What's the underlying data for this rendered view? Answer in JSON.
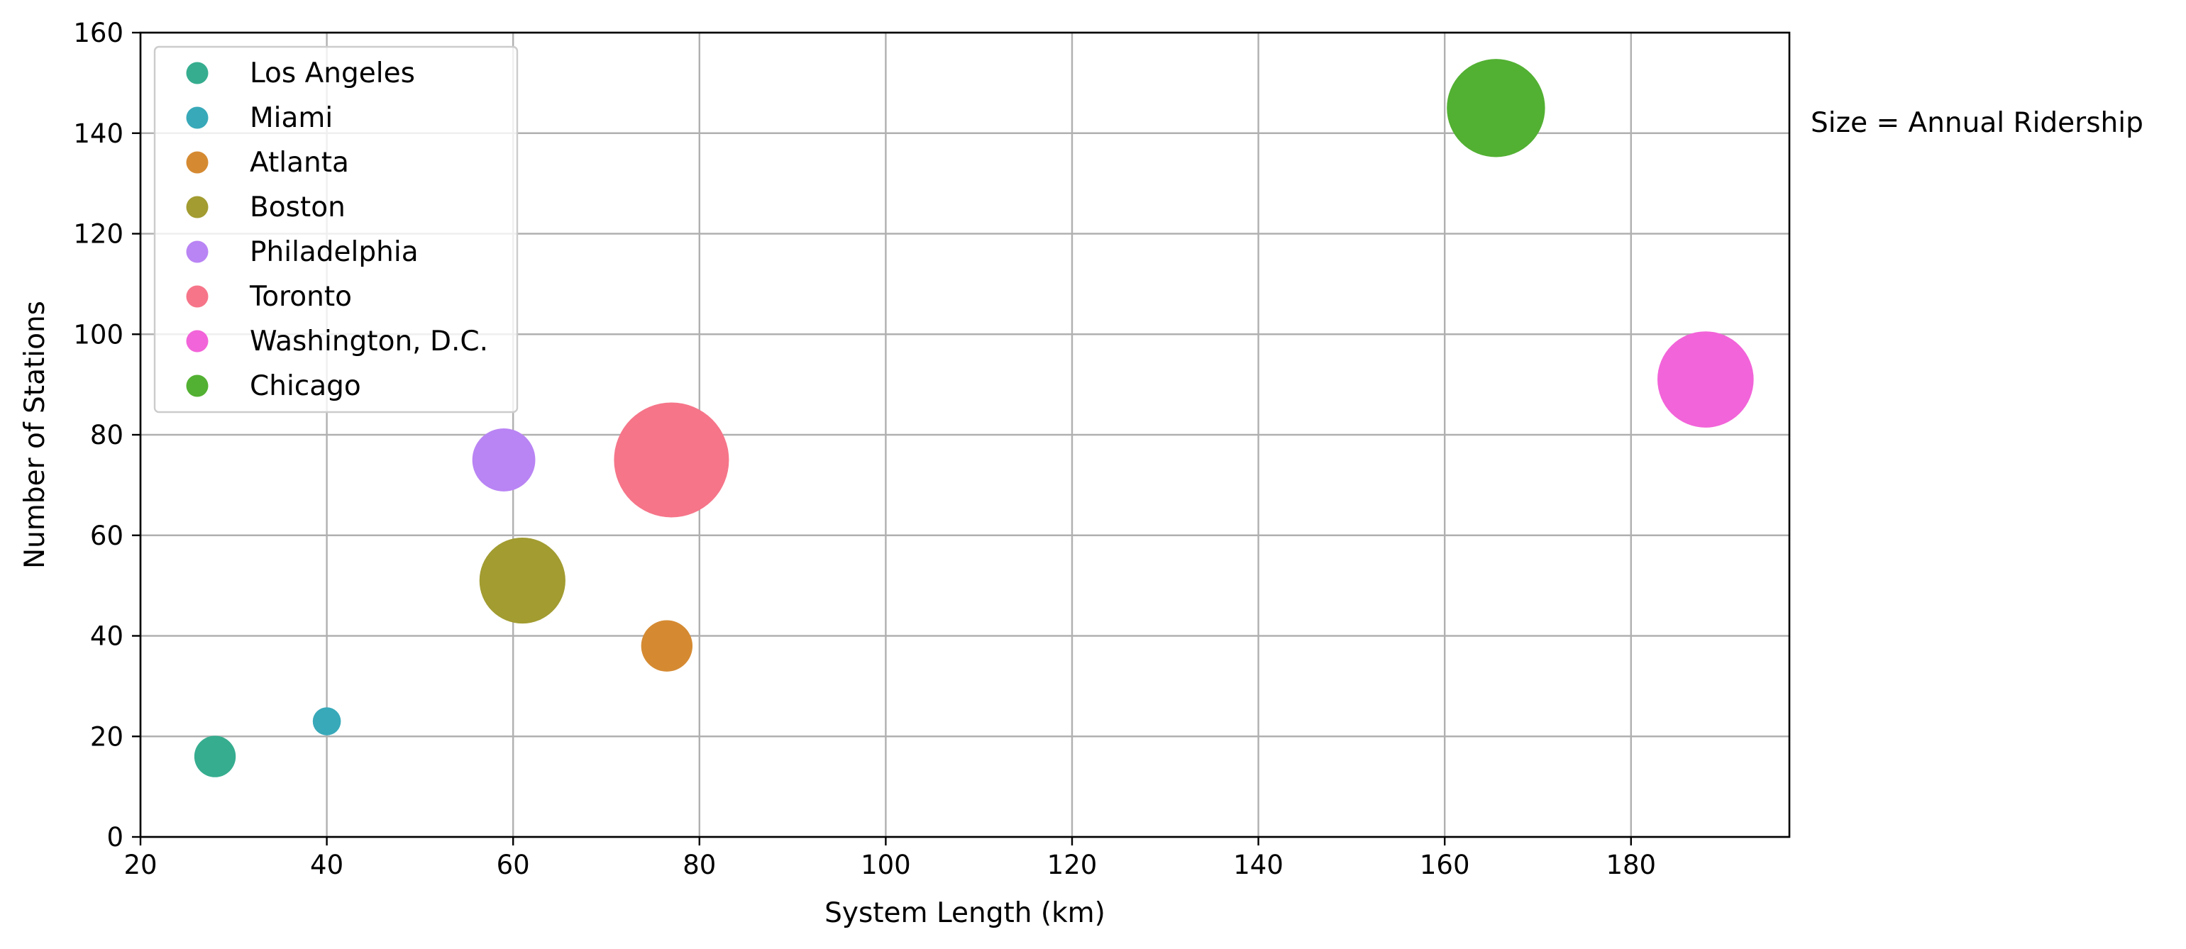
{
  "chart_data": {
    "type": "scatter",
    "xlabel": "System Length (km)",
    "ylabel": "Number of Stations",
    "size_note": "Size = Annual Ridership",
    "xlim": [
      20,
      197
    ],
    "ylim": [
      0,
      160
    ],
    "x_ticks": [
      20,
      40,
      60,
      80,
      100,
      120,
      140,
      160,
      180
    ],
    "y_ticks": [
      0,
      20,
      40,
      60,
      80,
      100,
      120,
      140,
      160
    ],
    "grid": true,
    "legend_position": "upper-left",
    "series": [
      {
        "name": "Los Angeles",
        "x": 28,
        "y": 16,
        "size_rel": 0.13,
        "color": "#36ad8f"
      },
      {
        "name": "Miami",
        "x": 40,
        "y": 23,
        "size_rel": 0.06,
        "color": "#38a9b9"
      },
      {
        "name": "Atlanta",
        "x": 76.5,
        "y": 38,
        "size_rel": 0.2,
        "color": "#d58a32"
      },
      {
        "name": "Boston",
        "x": 61,
        "y": 51,
        "size_rel": 0.56,
        "color": "#a29c31"
      },
      {
        "name": "Philadelphia",
        "x": 59,
        "y": 75,
        "size_rel": 0.3,
        "color": "#b984f4"
      },
      {
        "name": "Toronto",
        "x": 77,
        "y": 75,
        "size_rel": 1.0,
        "color": "#f67589"
      },
      {
        "name": "Washington, D.C.",
        "x": 188,
        "y": 91,
        "size_rel": 0.7,
        "color": "#f264d9"
      },
      {
        "name": "Chicago",
        "x": 165.5,
        "y": 145,
        "size_rel": 0.73,
        "color": "#52b032"
      }
    ]
  }
}
